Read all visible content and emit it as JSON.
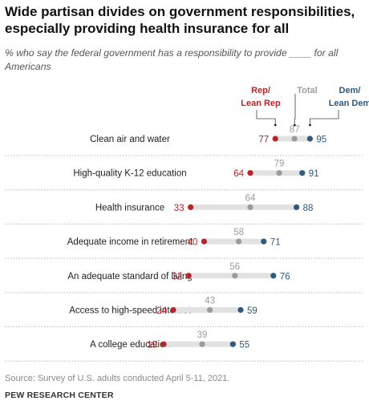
{
  "header": {
    "title": "Wide partisan divides on government responsibilities, especially providing health insurance for all",
    "subtitle": "% who say the federal government has a responsibility to provide ____ for all Americans"
  },
  "footer": {
    "source": "Source: Survey of U.S. adults conducted April 5-11, 2021.",
    "org": "PEW RESEARCH CENTER"
  },
  "colors": {
    "rep": "#b5252b",
    "total": "#9b9b9b",
    "dem": "#2c5b82",
    "bar": "#e2e2e2"
  },
  "chart_data": {
    "type": "dot-plot",
    "legend": [
      {
        "key": "rep",
        "label_lines": [
          "Rep/",
          "Lean Rep"
        ]
      },
      {
        "key": "total",
        "label_lines": [
          "Total"
        ]
      },
      {
        "key": "dem",
        "label_lines": [
          "Dem/",
          "Lean Dem"
        ]
      }
    ],
    "categories": [
      "Clean air and water",
      "High-quality K-12 education",
      "Health insurance",
      "Adequate income in retirement",
      "An adequate standard of living",
      "Access to high-speed internet",
      "A college education"
    ],
    "series": [
      {
        "name": "Rep/Lean Rep",
        "key": "rep",
        "values": [
          77,
          64,
          33,
          40,
          32,
          24,
          19
        ]
      },
      {
        "name": "Total",
        "key": "total",
        "values": [
          87,
          79,
          64,
          58,
          56,
          43,
          39
        ]
      },
      {
        "name": "Dem/Lean Dem",
        "key": "dem",
        "values": [
          95,
          91,
          88,
          71,
          76,
          59,
          55
        ]
      }
    ]
  }
}
